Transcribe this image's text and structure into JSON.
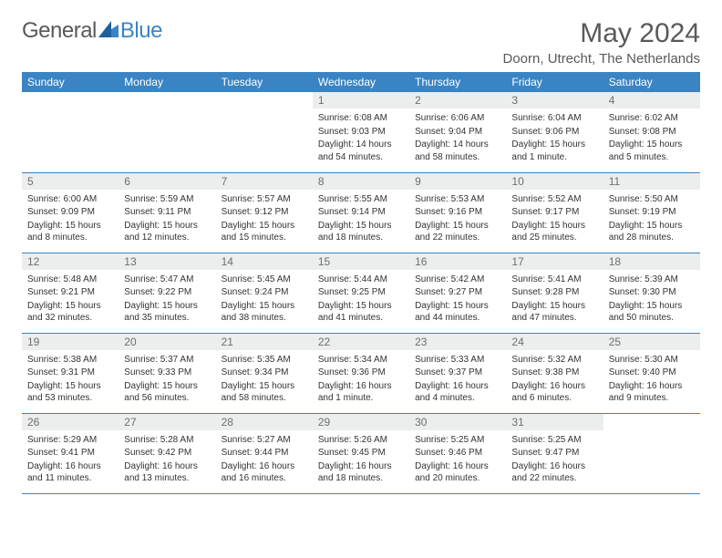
{
  "logo": {
    "text_general": "General",
    "text_blue": "Blue"
  },
  "header": {
    "month_title": "May 2024",
    "location": "Doorn, Utrecht, The Netherlands"
  },
  "colors": {
    "accent": "#3a84c4",
    "grey_bg": "#eceded",
    "text_grey": "#58595b"
  },
  "days_of_week": [
    "Sunday",
    "Monday",
    "Tuesday",
    "Wednesday",
    "Thursday",
    "Friday",
    "Saturday"
  ],
  "calendar": {
    "first_weekday_index": 3,
    "num_days": 31,
    "cells": [
      {
        "n": 1,
        "sunrise": "6:08 AM",
        "sunset": "9:03 PM",
        "daylight": "14 hours and 54 minutes."
      },
      {
        "n": 2,
        "sunrise": "6:06 AM",
        "sunset": "9:04 PM",
        "daylight": "14 hours and 58 minutes."
      },
      {
        "n": 3,
        "sunrise": "6:04 AM",
        "sunset": "9:06 PM",
        "daylight": "15 hours and 1 minute."
      },
      {
        "n": 4,
        "sunrise": "6:02 AM",
        "sunset": "9:08 PM",
        "daylight": "15 hours and 5 minutes."
      },
      {
        "n": 5,
        "sunrise": "6:00 AM",
        "sunset": "9:09 PM",
        "daylight": "15 hours and 8 minutes."
      },
      {
        "n": 6,
        "sunrise": "5:59 AM",
        "sunset": "9:11 PM",
        "daylight": "15 hours and 12 minutes."
      },
      {
        "n": 7,
        "sunrise": "5:57 AM",
        "sunset": "9:12 PM",
        "daylight": "15 hours and 15 minutes."
      },
      {
        "n": 8,
        "sunrise": "5:55 AM",
        "sunset": "9:14 PM",
        "daylight": "15 hours and 18 minutes."
      },
      {
        "n": 9,
        "sunrise": "5:53 AM",
        "sunset": "9:16 PM",
        "daylight": "15 hours and 22 minutes."
      },
      {
        "n": 10,
        "sunrise": "5:52 AM",
        "sunset": "9:17 PM",
        "daylight": "15 hours and 25 minutes."
      },
      {
        "n": 11,
        "sunrise": "5:50 AM",
        "sunset": "9:19 PM",
        "daylight": "15 hours and 28 minutes."
      },
      {
        "n": 12,
        "sunrise": "5:48 AM",
        "sunset": "9:21 PM",
        "daylight": "15 hours and 32 minutes."
      },
      {
        "n": 13,
        "sunrise": "5:47 AM",
        "sunset": "9:22 PM",
        "daylight": "15 hours and 35 minutes."
      },
      {
        "n": 14,
        "sunrise": "5:45 AM",
        "sunset": "9:24 PM",
        "daylight": "15 hours and 38 minutes."
      },
      {
        "n": 15,
        "sunrise": "5:44 AM",
        "sunset": "9:25 PM",
        "daylight": "15 hours and 41 minutes."
      },
      {
        "n": 16,
        "sunrise": "5:42 AM",
        "sunset": "9:27 PM",
        "daylight": "15 hours and 44 minutes."
      },
      {
        "n": 17,
        "sunrise": "5:41 AM",
        "sunset": "9:28 PM",
        "daylight": "15 hours and 47 minutes."
      },
      {
        "n": 18,
        "sunrise": "5:39 AM",
        "sunset": "9:30 PM",
        "daylight": "15 hours and 50 minutes."
      },
      {
        "n": 19,
        "sunrise": "5:38 AM",
        "sunset": "9:31 PM",
        "daylight": "15 hours and 53 minutes."
      },
      {
        "n": 20,
        "sunrise": "5:37 AM",
        "sunset": "9:33 PM",
        "daylight": "15 hours and 56 minutes."
      },
      {
        "n": 21,
        "sunrise": "5:35 AM",
        "sunset": "9:34 PM",
        "daylight": "15 hours and 58 minutes."
      },
      {
        "n": 22,
        "sunrise": "5:34 AM",
        "sunset": "9:36 PM",
        "daylight": "16 hours and 1 minute."
      },
      {
        "n": 23,
        "sunrise": "5:33 AM",
        "sunset": "9:37 PM",
        "daylight": "16 hours and 4 minutes."
      },
      {
        "n": 24,
        "sunrise": "5:32 AM",
        "sunset": "9:38 PM",
        "daylight": "16 hours and 6 minutes."
      },
      {
        "n": 25,
        "sunrise": "5:30 AM",
        "sunset": "9:40 PM",
        "daylight": "16 hours and 9 minutes."
      },
      {
        "n": 26,
        "sunrise": "5:29 AM",
        "sunset": "9:41 PM",
        "daylight": "16 hours and 11 minutes."
      },
      {
        "n": 27,
        "sunrise": "5:28 AM",
        "sunset": "9:42 PM",
        "daylight": "16 hours and 13 minutes."
      },
      {
        "n": 28,
        "sunrise": "5:27 AM",
        "sunset": "9:44 PM",
        "daylight": "16 hours and 16 minutes."
      },
      {
        "n": 29,
        "sunrise": "5:26 AM",
        "sunset": "9:45 PM",
        "daylight": "16 hours and 18 minutes."
      },
      {
        "n": 30,
        "sunrise": "5:25 AM",
        "sunset": "9:46 PM",
        "daylight": "16 hours and 20 minutes."
      },
      {
        "n": 31,
        "sunrise": "5:25 AM",
        "sunset": "9:47 PM",
        "daylight": "16 hours and 22 minutes."
      }
    ]
  },
  "labels": {
    "sunrise": "Sunrise:",
    "sunset": "Sunset:",
    "daylight": "Daylight:"
  }
}
